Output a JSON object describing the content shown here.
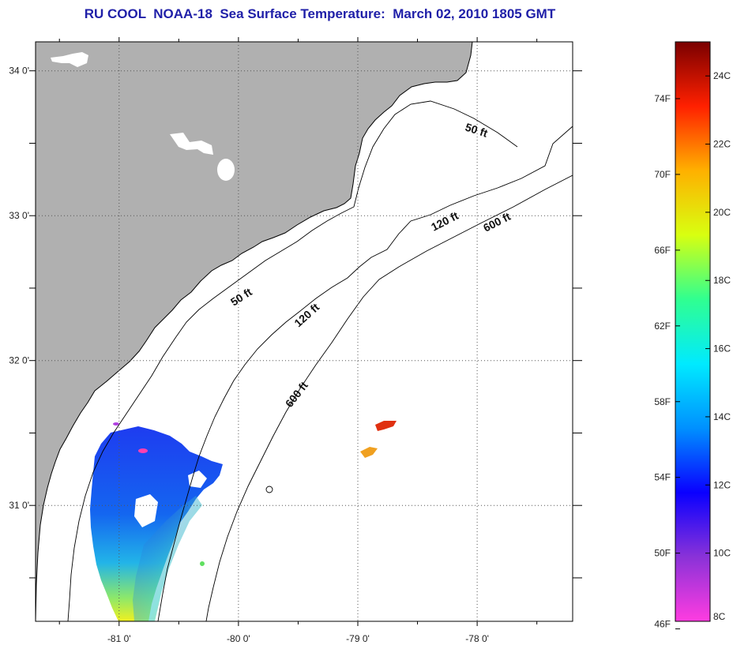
{
  "title": "RU COOL  NOAA-18  Sea Surface Temperature:  March 02, 2010 1805 GMT",
  "colors": {
    "land": "#b0b0b0",
    "ocean": "#ffffff",
    "coast": "#000000",
    "title": "#1f1fa8",
    "grid": "#666666"
  },
  "map": {
    "lon_range": [
      -81.7,
      -77.2
    ],
    "lat_range": [
      30.2,
      34.2
    ],
    "lon_ticks": [
      {
        "value": -81,
        "label": "-81 0'"
      },
      {
        "value": -80,
        "label": "-80 0'"
      },
      {
        "value": -79,
        "label": "-79 0'"
      },
      {
        "value": -78,
        "label": "-78 0'"
      }
    ],
    "lat_ticks": [
      {
        "value": 34,
        "label": "34 0'"
      },
      {
        "value": 33,
        "label": "33 0'"
      },
      {
        "value": 32,
        "label": "32 0'"
      },
      {
        "value": 31,
        "label": "31 0'"
      }
    ],
    "gridlines": true
  },
  "contour_labels": [
    {
      "text": "50 ft",
      "id": "contour-label-50ft-north"
    },
    {
      "text": "50 ft",
      "id": "contour-label-50ft-south"
    },
    {
      "text": "120 ft",
      "id": "contour-label-120ft-north"
    },
    {
      "text": "120 ft",
      "id": "contour-label-120ft-south"
    },
    {
      "text": "600 ft",
      "id": "contour-label-600ft-north"
    },
    {
      "text": "600 ft",
      "id": "contour-label-600ft-south"
    }
  ],
  "colorbar": {
    "celsius_range": [
      8,
      25
    ],
    "fahrenheit_labels": [
      "74F",
      "70F",
      "66F",
      "62F",
      "58F",
      "54F",
      "50F",
      "46F"
    ],
    "celsius_labels": [
      "24C",
      "22C",
      "20C",
      "18C",
      "16C",
      "14C",
      "12C",
      "10C",
      "8C"
    ],
    "stops": [
      "#ff3ce0",
      "#8a32d8",
      "#0a00ff",
      "#0090ff",
      "#00eaff",
      "#30ff90",
      "#d8ff10",
      "#ffb000",
      "#ff2000",
      "#7a0000"
    ]
  }
}
